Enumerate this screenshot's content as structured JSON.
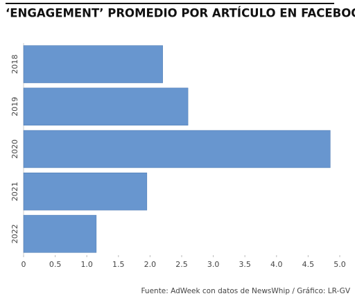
{
  "chart_data": {
    "type": "barh",
    "title": "‘ENGAGEMENT’ PROMEDIO POR ARTÍCULO EN FACEBOOK",
    "categories": [
      "2018",
      "2019",
      "2020",
      "2021",
      "2022"
    ],
    "values": [
      2.2,
      2.6,
      4.85,
      1.95,
      1.15
    ],
    "color": "#6896cf",
    "xlim": [
      0,
      5
    ],
    "xticks": [
      0,
      0.5,
      {
        "value": 1,
        "label": "1.0"
      },
      1.5,
      {
        "value": 2,
        "label": "2.0"
      },
      2.5,
      {
        "value": 3,
        "label": "3.0"
      },
      3.5,
      {
        "value": 4,
        "label": "4.0"
      },
      4.5,
      {
        "value": 5,
        "label": "5.0"
      }
    ],
    "grid": false,
    "source": "Fuente: AdWeek con datos de NewsWhip / Gráfico: LR-GV"
  }
}
